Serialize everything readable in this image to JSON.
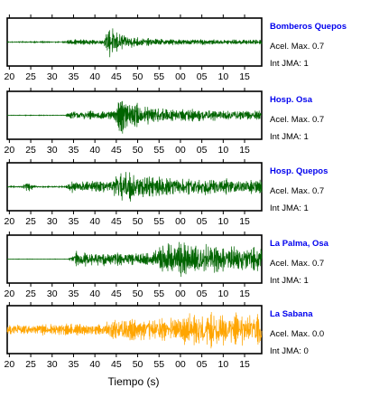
{
  "chart_data": {
    "type": "line",
    "xlabel": "Tiempo (s)",
    "x_range_seconds_of_minute": [
      19.5,
      19
    ],
    "x_tick_labels": [
      "20",
      "25",
      "30",
      "35",
      "40",
      "45",
      "50",
      "55",
      "00",
      "05",
      "10",
      "15"
    ],
    "panels": [
      {
        "station": "Bomberos Quepos",
        "peak_accel_label": "Acel. Max. 0.7",
        "intensity_label": "Int JMA: 1",
        "color": "#006400",
        "x_tick_labels": [
          "20",
          "25",
          "30",
          "35",
          "40",
          "45",
          "50",
          "55",
          "00",
          "05",
          "10",
          "15"
        ],
        "waveform": {
          "noise": 0.03,
          "onset_s": 32,
          "pre_amp": 0.12,
          "peak_s": 43.5,
          "peak_amp": 0.92,
          "decay_s": 3.2,
          "coda_amp": 0.13,
          "coda_decay_s": 40
        }
      },
      {
        "station": "Hosp. Osa",
        "peak_accel_label": "Acel. Max. 0.7",
        "intensity_label": "Int JMA: 1",
        "color": "#006400",
        "x_tick_labels": [
          "20",
          "25",
          "30",
          "35",
          "40",
          "45",
          "50",
          "55",
          "00",
          "05",
          "10",
          "15"
        ],
        "waveform": {
          "noise": 0.02,
          "onset_s": 33,
          "pre_amp": 0.25,
          "peak_s": 46,
          "peak_amp": 0.95,
          "decay_s": 5.5,
          "coda_amp": 0.28,
          "coda_decay_s": 40
        }
      },
      {
        "station": "Hosp. Quepos",
        "peak_accel_label": "Acel. Max. 0.7",
        "intensity_label": "Int JMA: 1",
        "color": "#006400",
        "x_tick_labels": [
          "20",
          "25",
          "30",
          "35",
          "40",
          "45",
          "50",
          "55",
          "00",
          "05",
          "10",
          "15"
        ],
        "waveform": {
          "noise": 0.04,
          "onset_s": 33,
          "pre_amp": 0.32,
          "peak_s": 45.5,
          "peak_amp": 0.95,
          "decay_s": 7,
          "coda_amp": 0.45,
          "coda_decay_s": 60,
          "early_burst_s": 24.5,
          "early_burst_amp": 0.35
        }
      },
      {
        "station": "La Palma, Osa",
        "peak_accel_label": "Acel. Max. 0.7",
        "intensity_label": "Int JMA: 1",
        "color": "#006400",
        "x_tick_labels": [
          "20",
          "25",
          "30",
          "35",
          "40",
          "45",
          "50",
          "55",
          "00",
          "05",
          "10",
          "15"
        ],
        "waveform": {
          "noise": 0.01,
          "onset_s": 33.8,
          "pre_amp": 0.4,
          "peak_s": 55,
          "peak_amp": 0.95,
          "decay_s": 20,
          "coda_amp": 0.6,
          "coda_decay_s": 80
        }
      },
      {
        "station": "La Sabana",
        "peak_accel_label": "Acel. Max. 0.0",
        "intensity_label": "Int JMA: 0",
        "color": "#ffa500",
        "x_tick_labels": [
          "20",
          "25",
          "30",
          "35",
          "40",
          "45",
          "50",
          "55",
          "00",
          "05",
          "10",
          "15"
        ],
        "waveform": {
          "noise": 0.35,
          "onset_s": 42,
          "pre_amp": 0.35,
          "peak_s": 62,
          "peak_amp": 0.95,
          "decay_s": 30,
          "coda_amp": 0.7,
          "coda_decay_s": 80
        }
      }
    ]
  }
}
